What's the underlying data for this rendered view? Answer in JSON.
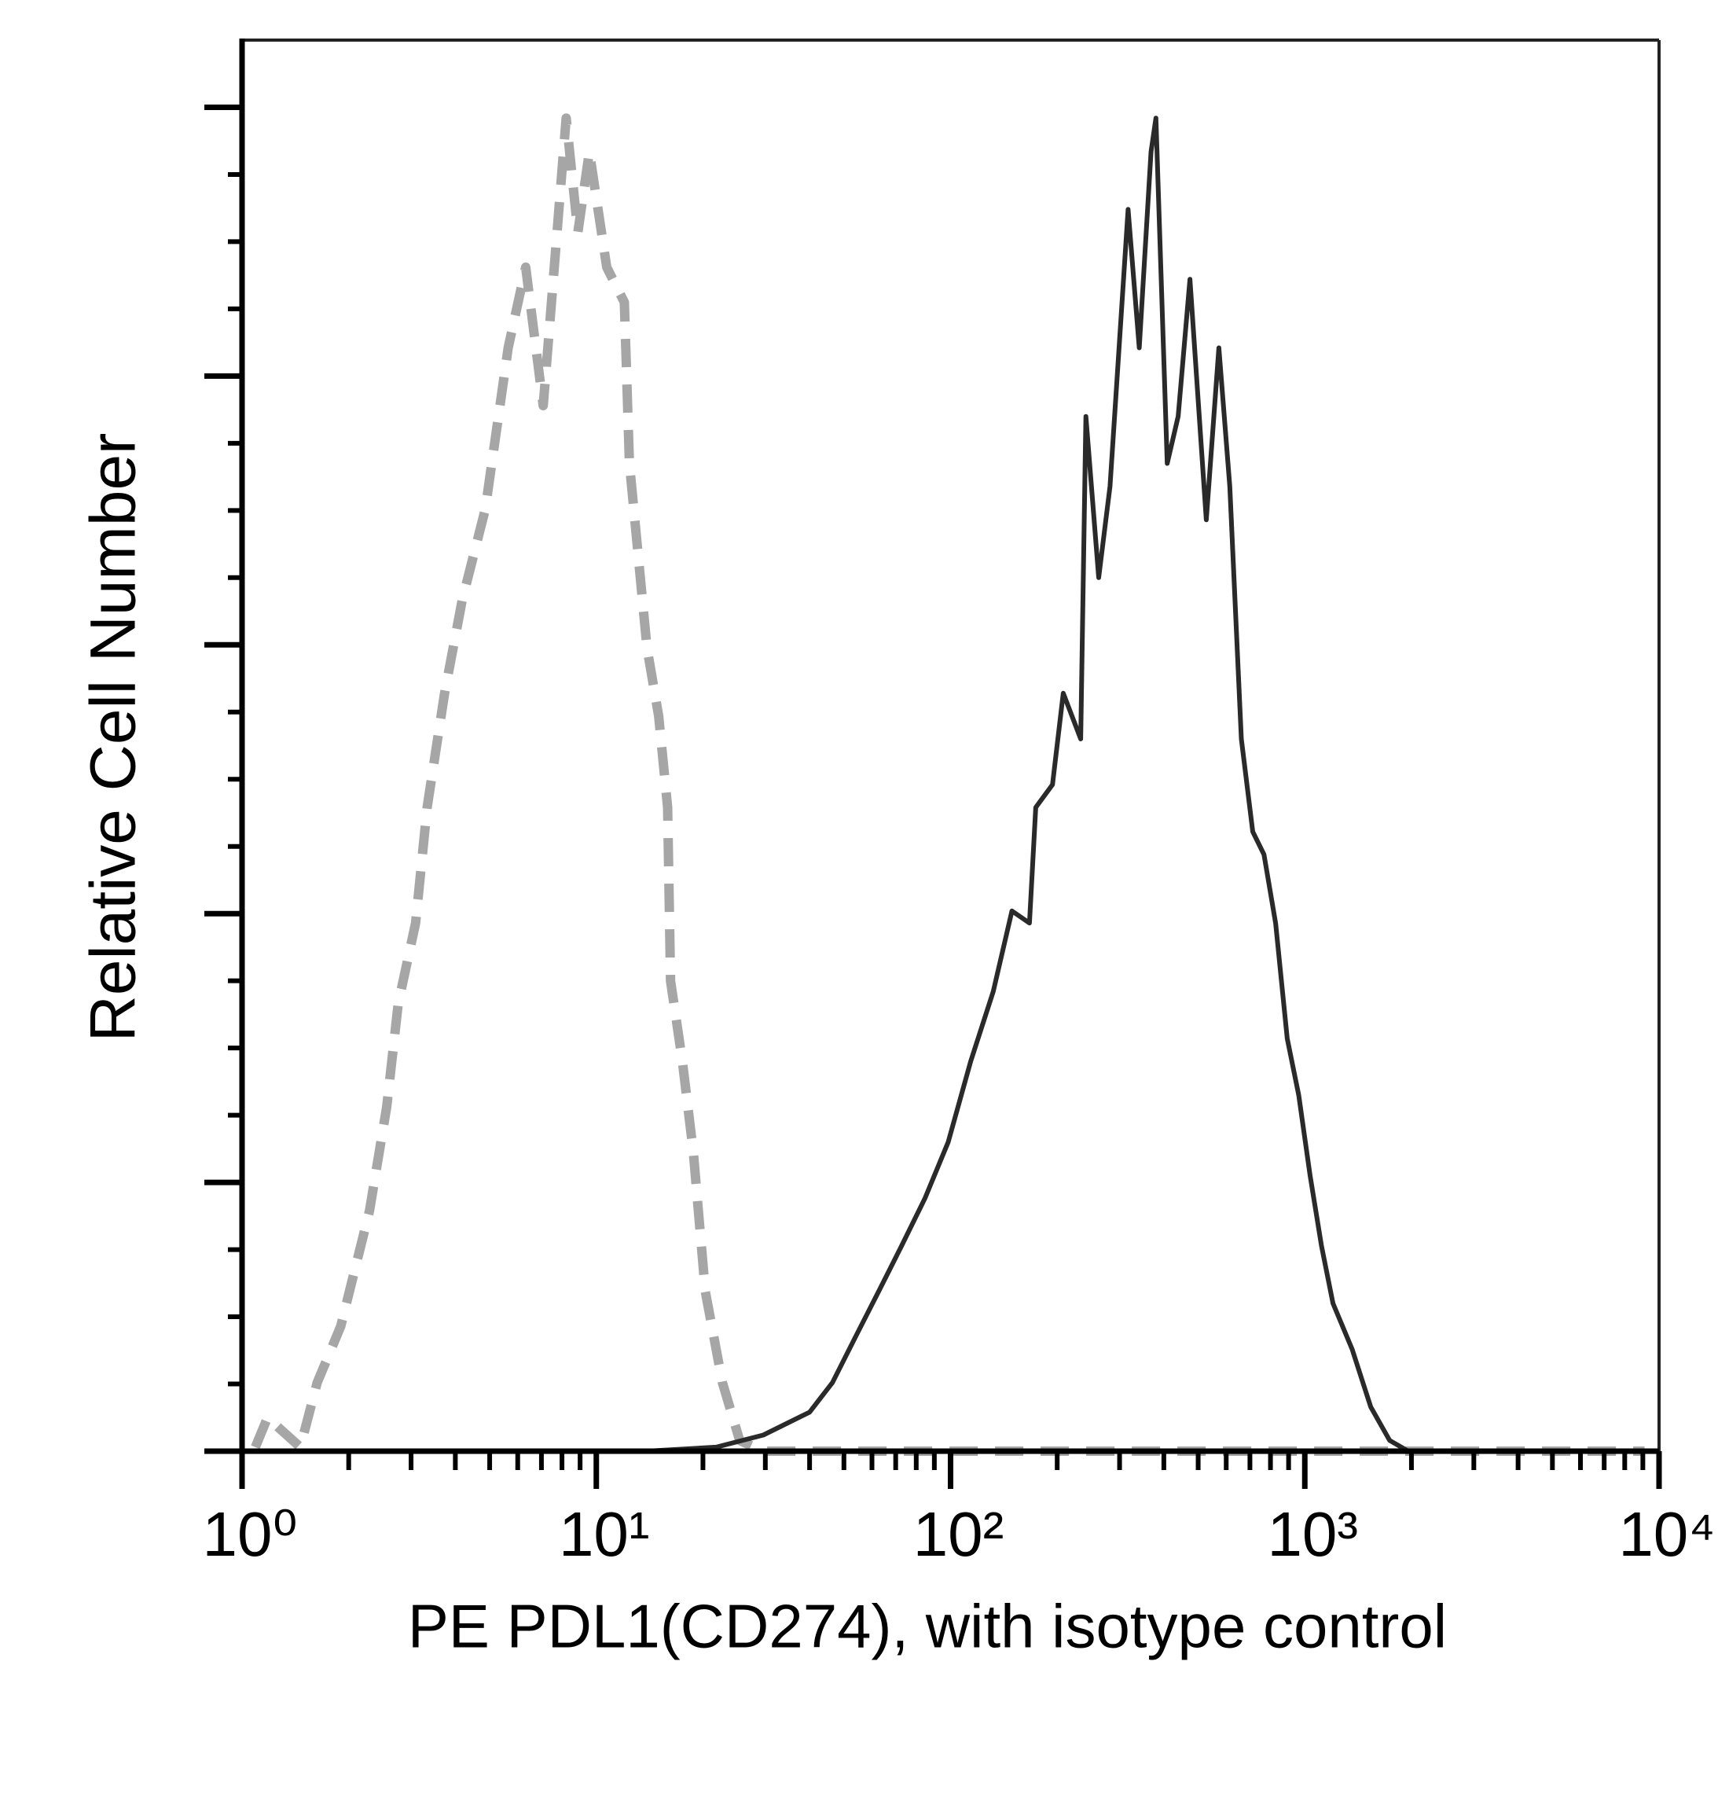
{
  "chart_data": {
    "type": "line",
    "xlabel": "PE PDL1(CD274), with isotype control",
    "ylabel": "Relative Cell Number",
    "xscale": "log",
    "xlim": [
      1,
      10000
    ],
    "xticks": [
      {
        "value": 1,
        "label": "10⁰"
      },
      {
        "value": 10,
        "label": "10¹"
      },
      {
        "value": 100,
        "label": "10²"
      },
      {
        "value": 1000,
        "label": "10³"
      },
      {
        "value": 10000,
        "label": "10⁴"
      }
    ],
    "ylim": [
      0,
      105
    ],
    "yticks": [
      0,
      20,
      40,
      60,
      80,
      100
    ],
    "yminorticks": [
      5,
      10,
      15,
      25,
      30,
      35,
      45,
      50,
      55,
      65,
      70,
      75,
      85,
      90,
      95
    ],
    "series": [
      {
        "color": "#a6a6a6",
        "dash": true,
        "x": [
          1.09,
          1.18,
          1.46,
          1.63,
          1.9,
          2.29,
          2.56,
          2.76,
          3.09,
          3.33,
          3.73,
          4.18,
          4.86,
          5.64,
          6.32,
          7.08,
          8.22,
          8.87,
          9.56,
          10.7,
          12.0,
          12.4,
          13.9,
          15.0,
          15.9,
          16.2,
          17.5,
          18.8,
          20.3,
          22.7,
          25.4,
          29.6,
          100,
          1000,
          9100
        ],
        "values": [
          0.3,
          2.5,
          0.3,
          5.1,
          9.3,
          17.9,
          25.6,
          33.3,
          39.3,
          47.9,
          56.4,
          63.3,
          70.1,
          82.1,
          88.1,
          77.8,
          99.2,
          90.7,
          96.7,
          88.1,
          85.5,
          73.5,
          59.8,
          54.7,
          47.9,
          35.0,
          29.0,
          22.2,
          11.9,
          5.1,
          0.8,
          0,
          0,
          0,
          0
        ]
      },
      {
        "color": "#2a2a2a",
        "dash": false,
        "x": [
          13.9,
          21.8,
          29.6,
          40.0,
          46.4,
          53.9,
          62.7,
          72.8,
          84.6,
          98.5,
          114,
          132,
          149,
          167,
          174,
          194,
          208,
          233,
          241,
          262,
          282,
          317,
          341,
          368,
          380,
          409,
          439,
          474,
          527,
          572,
          614,
          662,
          713,
          767,
          827,
          892,
          961,
          1035,
          1114,
          1201,
          1360,
          1535,
          1736,
          1958,
          9600
        ],
        "values": [
          0,
          0.3,
          1.2,
          2.9,
          5.1,
          8.5,
          11.9,
          15.3,
          18.8,
          23.0,
          29.0,
          34.2,
          40.2,
          39.3,
          47.9,
          49.6,
          56.4,
          53.0,
          77.0,
          65.0,
          71.8,
          92.4,
          82.1,
          96.7,
          99.2,
          73.5,
          77.0,
          87.2,
          69.3,
          82.1,
          71.8,
          53.0,
          46.1,
          44.4,
          39.3,
          30.7,
          26.5,
          20.5,
          15.3,
          11.0,
          7.6,
          3.3,
          0.8,
          0,
          0
        ]
      }
    ]
  }
}
